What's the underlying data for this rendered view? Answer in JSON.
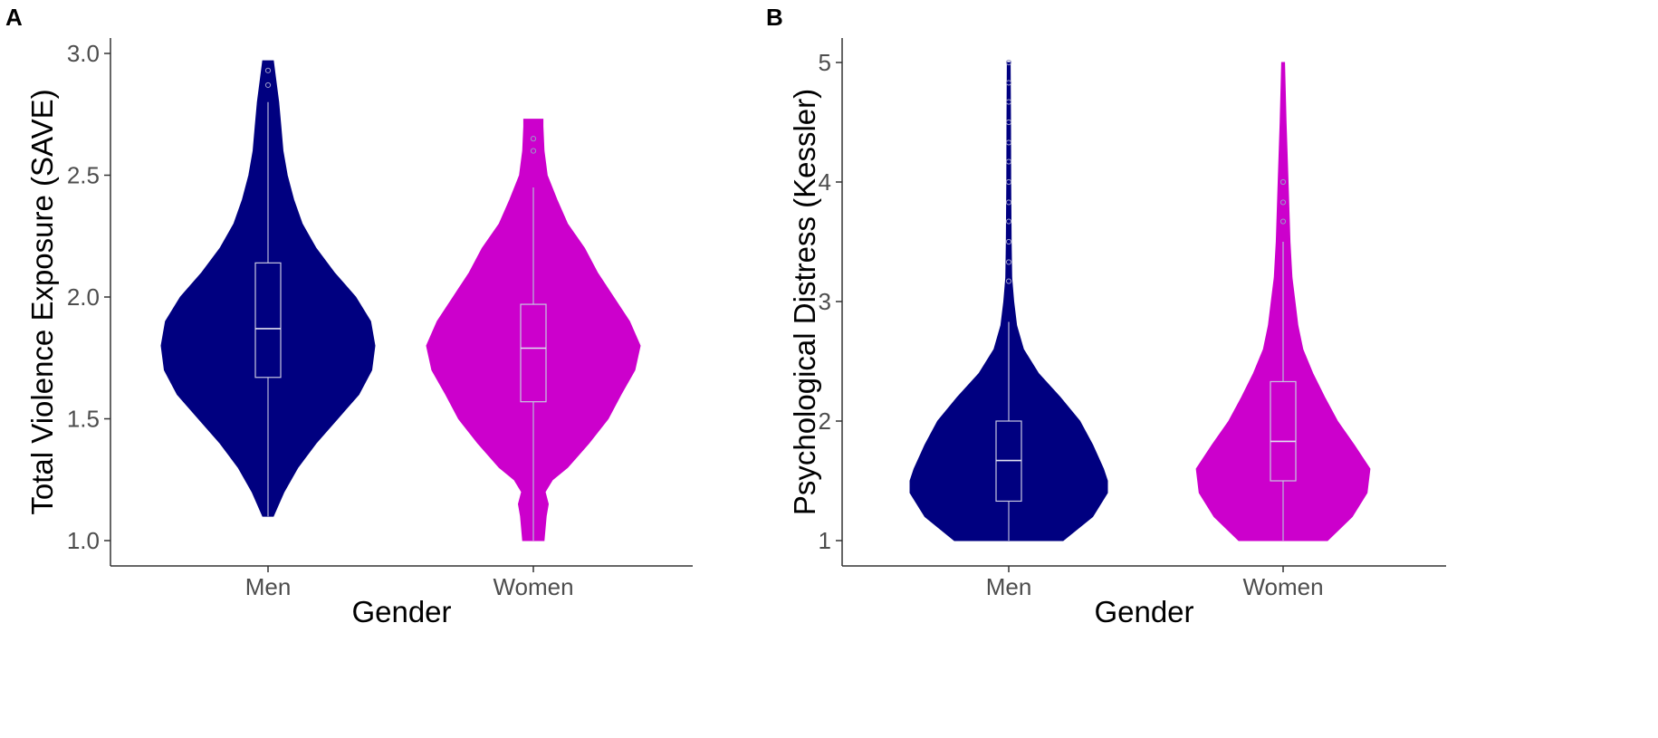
{
  "chart_data": [
    {
      "panel": "A",
      "type": "violin",
      "xlabel": "Gender",
      "ylabel": "Total Violence Exposure (SAVE)",
      "categories": [
        "Men",
        "Women"
      ],
      "ylim": [
        0.9,
        3.05
      ],
      "yticks": [
        1.0,
        1.5,
        2.0,
        2.5,
        3.0
      ],
      "ytick_labels": [
        "1.0",
        "1.5",
        "2.0",
        "2.5",
        "3.0"
      ],
      "grid": false,
      "series": [
        {
          "name": "Men",
          "color": "#000080",
          "violin_min": 1.1,
          "violin_max": 2.97,
          "density": [
            [
              1.1,
              0.05
            ],
            [
              1.2,
              0.15
            ],
            [
              1.3,
              0.28
            ],
            [
              1.4,
              0.45
            ],
            [
              1.5,
              0.65
            ],
            [
              1.6,
              0.85
            ],
            [
              1.7,
              0.97
            ],
            [
              1.8,
              1.0
            ],
            [
              1.9,
              0.96
            ],
            [
              2.0,
              0.82
            ],
            [
              2.1,
              0.62
            ],
            [
              2.2,
              0.45
            ],
            [
              2.3,
              0.32
            ],
            [
              2.4,
              0.24
            ],
            [
              2.5,
              0.18
            ],
            [
              2.6,
              0.14
            ],
            [
              2.7,
              0.12
            ],
            [
              2.8,
              0.1
            ],
            [
              2.9,
              0.07
            ],
            [
              2.97,
              0.05
            ]
          ],
          "box": {
            "whisker_low": 1.1,
            "q1": 1.67,
            "median": 1.87,
            "q3": 2.14,
            "whisker_high": 2.8
          },
          "outliers": [
            2.87,
            2.93
          ]
        },
        {
          "name": "Women",
          "color": "#cc00cc",
          "violin_min": 1.0,
          "violin_max": 2.73,
          "density": [
            [
              1.0,
              0.1
            ],
            [
              1.05,
              0.11
            ],
            [
              1.1,
              0.12
            ],
            [
              1.15,
              0.14
            ],
            [
              1.2,
              0.11
            ],
            [
              1.25,
              0.18
            ],
            [
              1.3,
              0.32
            ],
            [
              1.4,
              0.52
            ],
            [
              1.5,
              0.7
            ],
            [
              1.6,
              0.82
            ],
            [
              1.7,
              0.95
            ],
            [
              1.8,
              1.0
            ],
            [
              1.9,
              0.9
            ],
            [
              2.0,
              0.75
            ],
            [
              2.1,
              0.6
            ],
            [
              2.2,
              0.48
            ],
            [
              2.3,
              0.32
            ],
            [
              2.4,
              0.22
            ],
            [
              2.5,
              0.13
            ],
            [
              2.6,
              0.1
            ],
            [
              2.7,
              0.09
            ],
            [
              2.73,
              0.09
            ]
          ],
          "box": {
            "whisker_low": 1.0,
            "q1": 1.57,
            "median": 1.79,
            "q3": 1.97,
            "whisker_high": 2.45
          },
          "outliers": [
            2.6,
            2.65
          ]
        }
      ]
    },
    {
      "panel": "B",
      "type": "violin",
      "xlabel": "Gender",
      "ylabel": "Psychological Distress (Kessler)",
      "categories": [
        "Men",
        "Women"
      ],
      "ylim": [
        0.8,
        5.2
      ],
      "yticks": [
        1,
        2,
        3,
        4,
        5
      ],
      "ytick_labels": [
        "1",
        "2",
        "3",
        "4",
        "5"
      ],
      "grid": false,
      "series": [
        {
          "name": "Men",
          "color": "#000080",
          "violin_min": 1.0,
          "violin_max": 5.0,
          "density": [
            [
              1.0,
              0.55
            ],
            [
              1.2,
              0.85
            ],
            [
              1.4,
              1.0
            ],
            [
              1.5,
              1.0
            ],
            [
              1.6,
              0.96
            ],
            [
              1.8,
              0.85
            ],
            [
              2.0,
              0.72
            ],
            [
              2.2,
              0.52
            ],
            [
              2.4,
              0.3
            ],
            [
              2.6,
              0.15
            ],
            [
              2.8,
              0.08
            ],
            [
              3.0,
              0.05
            ],
            [
              3.2,
              0.03
            ],
            [
              3.5,
              0.025
            ],
            [
              4.0,
              0.02
            ],
            [
              4.5,
              0.018
            ],
            [
              5.0,
              0.015
            ]
          ],
          "box": {
            "whisker_low": 1.0,
            "q1": 1.33,
            "median": 1.67,
            "q3": 2.0,
            "whisker_high": 2.83
          },
          "outliers": [
            3.17,
            3.33,
            3.5,
            3.67,
            3.83,
            4.0,
            4.17,
            4.33,
            4.5,
            4.67,
            4.83,
            5.0
          ]
        },
        {
          "name": "Women",
          "color": "#cc00cc",
          "violin_min": 1.0,
          "violin_max": 5.0,
          "density": [
            [
              1.0,
              0.45
            ],
            [
              1.2,
              0.7
            ],
            [
              1.4,
              0.85
            ],
            [
              1.6,
              0.88
            ],
            [
              1.8,
              0.72
            ],
            [
              2.0,
              0.55
            ],
            [
              2.2,
              0.42
            ],
            [
              2.4,
              0.3
            ],
            [
              2.6,
              0.2
            ],
            [
              2.8,
              0.15
            ],
            [
              3.0,
              0.12
            ],
            [
              3.2,
              0.09
            ],
            [
              3.5,
              0.07
            ],
            [
              4.0,
              0.05
            ],
            [
              4.5,
              0.03
            ],
            [
              5.0,
              0.015
            ]
          ],
          "box": {
            "whisker_low": 1.0,
            "q1": 1.5,
            "median": 1.83,
            "q3": 2.33,
            "whisker_high": 3.5
          },
          "outliers": [
            3.67,
            3.83,
            4.0
          ]
        }
      ]
    }
  ]
}
